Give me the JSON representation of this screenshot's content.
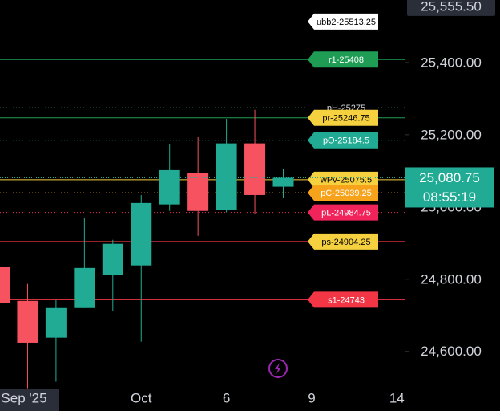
{
  "chart_data": {
    "type": "candlestick",
    "categories": [
      null,
      "Sep '25",
      null,
      null,
      null,
      "Oct",
      null,
      null,
      "6",
      null,
      null,
      "9",
      null,
      null,
      "14"
    ],
    "open": [
      24833,
      24740,
      24638,
      24720,
      24811,
      24838,
      25007,
      25093,
      24991,
      25176,
      25056,
      null,
      null,
      null,
      null
    ],
    "high": [
      24840,
      24787,
      24742,
      24969,
      24909,
      25033,
      25173,
      25193,
      25244,
      25269,
      25104,
      null,
      null,
      null,
      null
    ],
    "low": [
      24730,
      24498,
      24516,
      24720,
      24713,
      24627,
      24989,
      24920,
      24985,
      24980,
      25024,
      null,
      null,
      null,
      null
    ],
    "close": [
      24733,
      24624,
      24720,
      24831,
      24898,
      25011,
      25102,
      24989,
      25176,
      25033,
      25080.75,
      null,
      null,
      null,
      null
    ],
    "up_color": "#22ab94",
    "down_color": "#f7525f",
    "ylim": [
      24435,
      25573
    ],
    "yticks": [
      {
        "value": 24600,
        "label": "24,600.00"
      },
      {
        "value": 24800,
        "label": "24,800.00"
      },
      {
        "value": 25000,
        "label": "25,000.00"
      },
      {
        "value": 25200,
        "label": "25,200.00"
      },
      {
        "value": 25400,
        "label": "25,400.00"
      }
    ],
    "top_label": {
      "value": 25555.5,
      "label": "25,555.50"
    },
    "last_price": {
      "value": 25080.75,
      "label": "25,080.75",
      "countdown": "08:55:19",
      "color": "#22ab94"
    },
    "levels": [
      {
        "label": "ubb2-25513.25",
        "value": 25513.25,
        "bg": "#ffffff",
        "fg": "#000000",
        "line_color": null,
        "dash": false
      },
      {
        "label": "r1-25408",
        "value": 25408,
        "bg": "#1f9d55",
        "fg": "#ffffff",
        "line_color": "#1f9d55",
        "dash": false
      },
      {
        "label": "pH-25275",
        "value": 25275,
        "bg": "#000000",
        "fg": "#d1d4dc",
        "line_color": "#1f9d55",
        "dash": true
      },
      {
        "label": "pr-25246.75",
        "value": 25246.75,
        "bg": "#f5d03f",
        "fg": "#000000",
        "line_color": "#1f9d55",
        "dash": false
      },
      {
        "label": "pO-25184.5",
        "value": 25184.5,
        "bg": "#22ab94",
        "fg": "#ffffff",
        "line_color": "#22ab94",
        "dash": true
      },
      {
        "label": "wPv-25075.5",
        "value": 25075.5,
        "bg": "#f5d03f",
        "fg": "#000000",
        "line_color": "#f5d03f",
        "dash": false
      },
      {
        "label": "pC-25039.25",
        "value": 25039.25,
        "bg": "#f7a21b",
        "fg": "#ffffff",
        "line_color": "#f7a21b",
        "dash": true
      },
      {
        "label": "pL-24984.75",
        "value": 24984.75,
        "bg": "#f0245b",
        "fg": "#ffffff",
        "line_color": "#f0245b",
        "dash": true
      },
      {
        "label": "ps-24904.25",
        "value": 24904.25,
        "bg": "#f5d03f",
        "fg": "#000000",
        "line_color": "#f23645",
        "dash": false
      },
      {
        "label": "s1-24743",
        "value": 24743,
        "bg": "#f23645",
        "fg": "#ffffff",
        "line_color": "#f23645",
        "dash": false
      }
    ]
  }
}
